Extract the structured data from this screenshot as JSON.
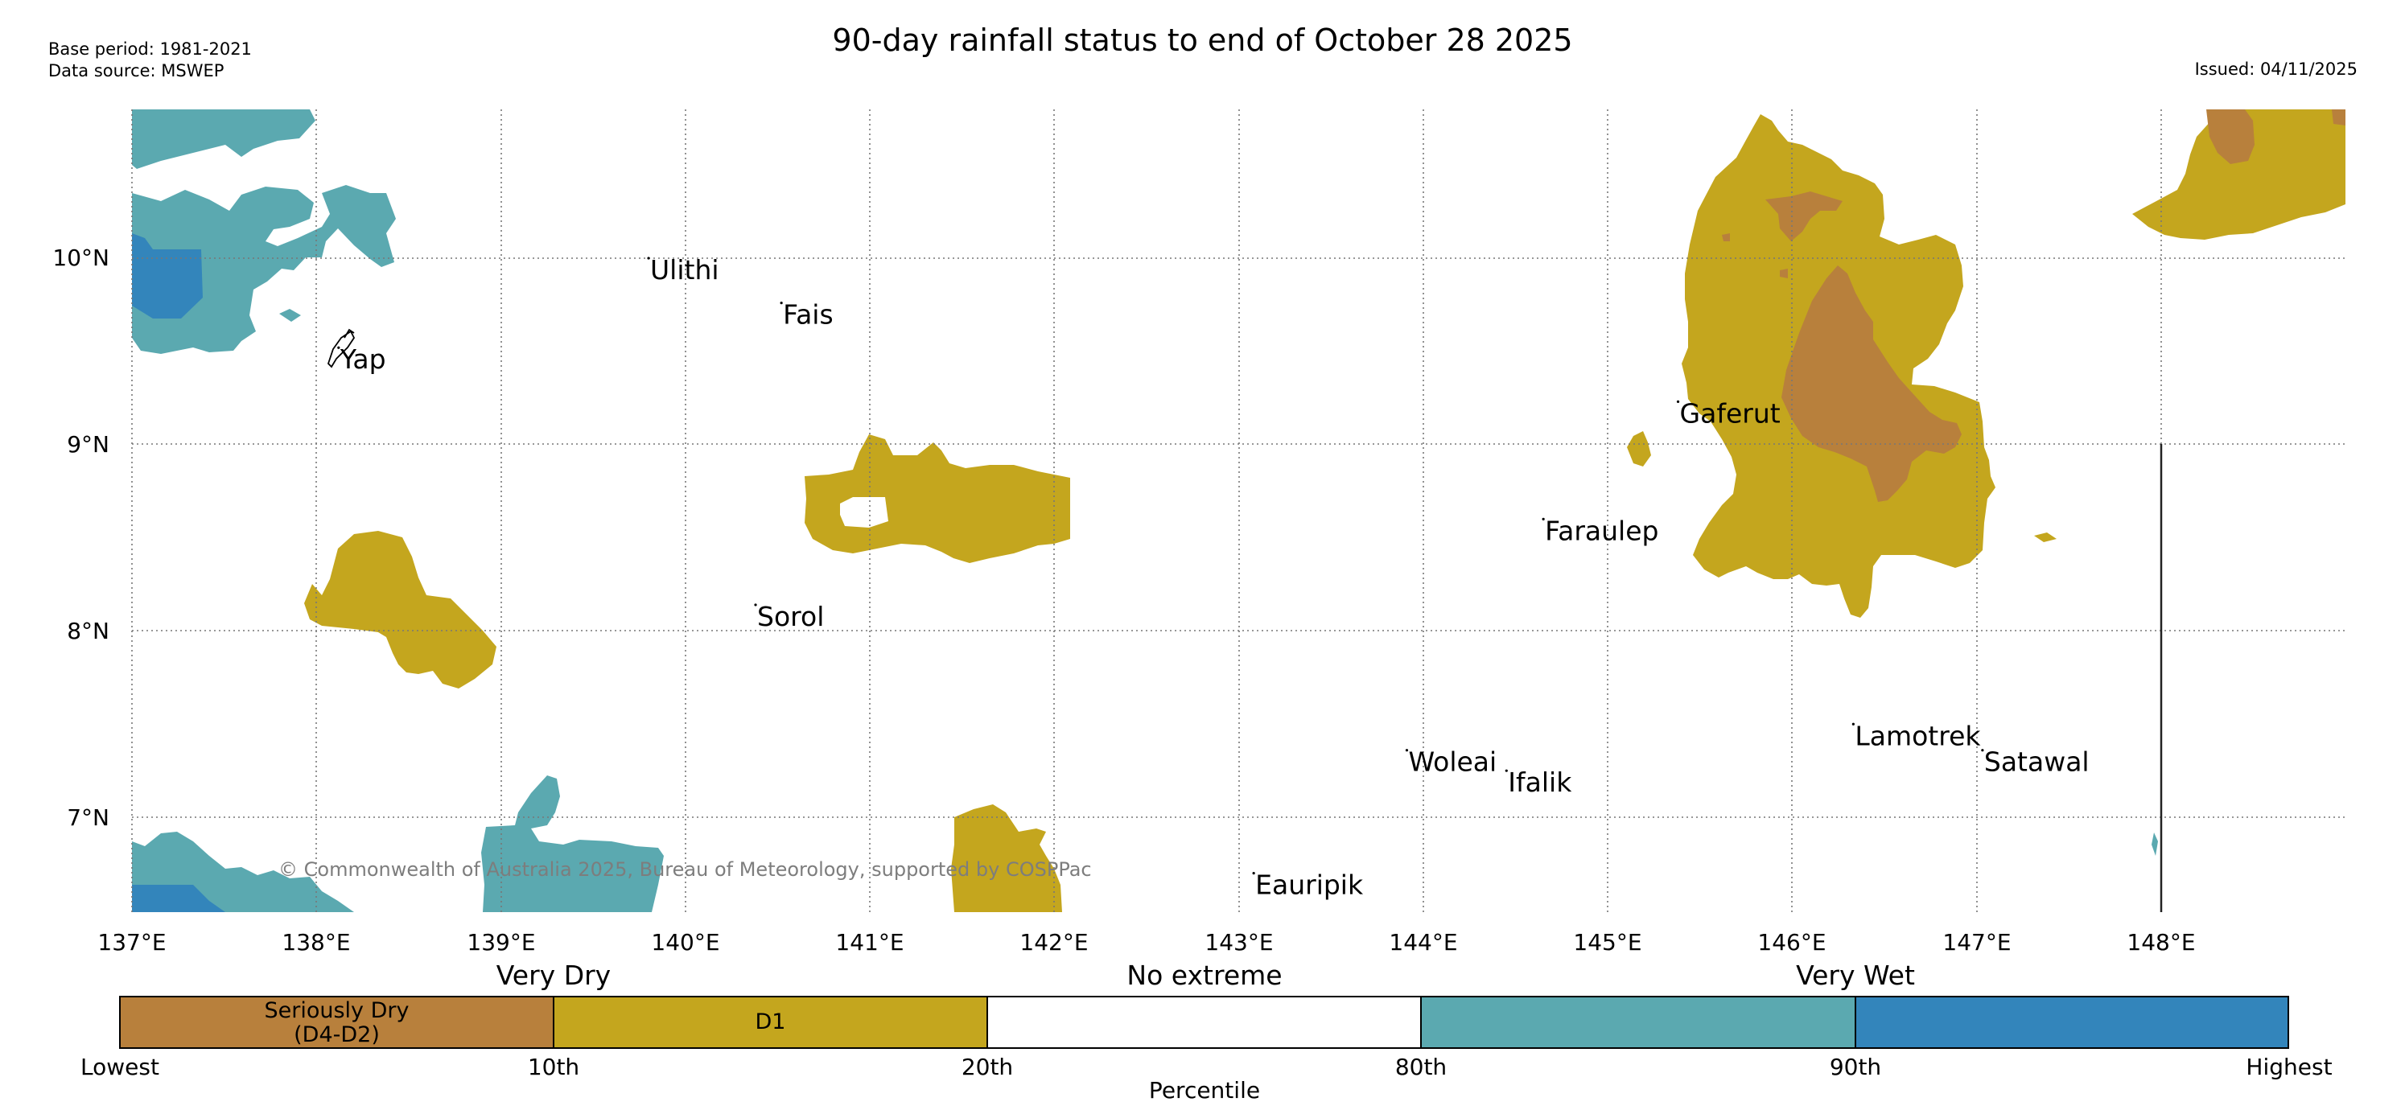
{
  "header": {
    "title": "90-day rainfall status to end of October 28 2025",
    "base_period": "Base period: 1981-2021",
    "data_source": "Data source: MSWEP",
    "issued": "Issued: 04/11/2025"
  },
  "map": {
    "lat_labels": [
      "10°N",
      "9°N",
      "8°N",
      "7°N"
    ],
    "lon_labels": [
      "137°E",
      "138°E",
      "139°E",
      "140°E",
      "141°E",
      "142°E",
      "143°E",
      "144°E",
      "145°E",
      "146°E",
      "147°E",
      "148°E"
    ],
    "places": [
      {
        "name": "Ulithi",
        "lon": 139.8,
        "lat": 10.0
      },
      {
        "name": "Fais",
        "lon": 140.52,
        "lat": 9.76
      },
      {
        "name": "Yap",
        "lon": 138.12,
        "lat": 9.52
      },
      {
        "name": "Gaferut",
        "lon": 145.38,
        "lat": 9.23
      },
      {
        "name": "Faraulep",
        "lon": 144.65,
        "lat": 8.6
      },
      {
        "name": "Sorol",
        "lon": 140.38,
        "lat": 8.14
      },
      {
        "name": "Woleai",
        "lon": 143.91,
        "lat": 7.36
      },
      {
        "name": "Ifalik",
        "lon": 144.45,
        "lat": 7.25
      },
      {
        "name": "Lamotrek",
        "lon": 146.33,
        "lat": 7.5
      },
      {
        "name": "Satawal",
        "lon": 147.03,
        "lat": 7.36
      },
      {
        "name": "Eauripik",
        "lon": 143.08,
        "lat": 6.7
      }
    ],
    "copyright": "© Commonwealth of Australia 2025, Bureau of Meteorology, supported by COSPPac"
  },
  "legend": {
    "categories": [
      {
        "label": "Very Dry"
      },
      {
        "label": "No extreme"
      },
      {
        "label": "Very Wet"
      }
    ],
    "segments": [
      {
        "label": "Seriously Dry",
        "label2": "(D4-D2)",
        "color": "#b8803c"
      },
      {
        "label": "D1",
        "label2": "",
        "color": "#c4a61e"
      },
      {
        "label": "",
        "label2": "",
        "color": "#ffffff"
      },
      {
        "label": "",
        "label2": "",
        "color": "#5ba9b0"
      },
      {
        "label": "",
        "label2": "",
        "color": "#3385bb"
      }
    ],
    "ticks": [
      "Lowest",
      "10th",
      "20th",
      "80th",
      "90th",
      "Highest"
    ],
    "axis_title": "Percentile"
  },
  "colors": {
    "seriously_dry": "#b8803c",
    "d1": "#c4a61e",
    "very_wet_90th": "#5ba9b0",
    "highest": "#3385bb"
  }
}
